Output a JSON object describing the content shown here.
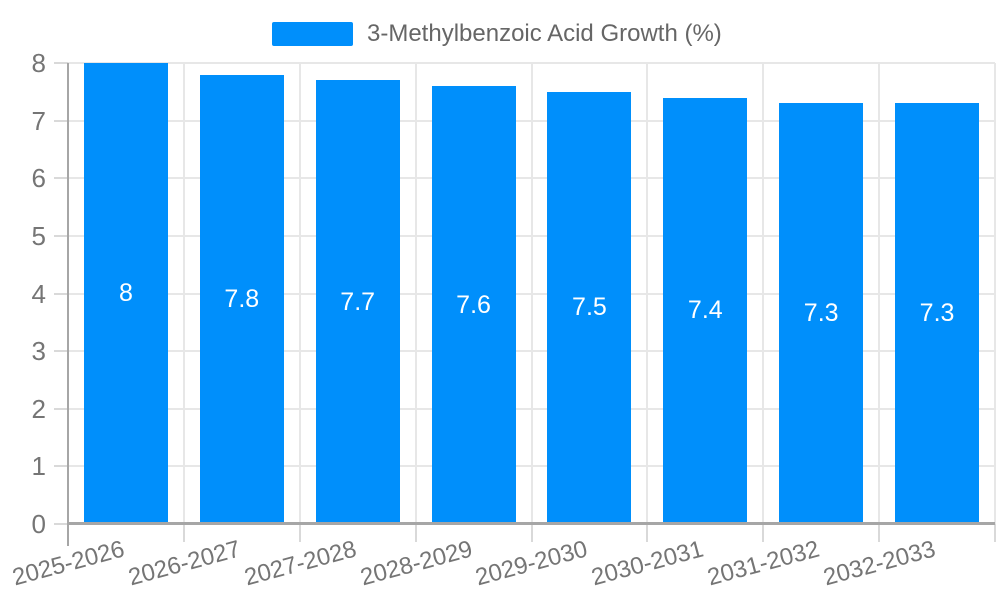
{
  "chart_data": {
    "type": "bar",
    "title": "3-Methylbenzoic Acid Growth (%)",
    "categories": [
      "2025-2026",
      "2026-2027",
      "2027-2028",
      "2028-2029",
      "2029-2030",
      "2030-2031",
      "2031-2032",
      "2032-2033"
    ],
    "values": [
      8,
      7.8,
      7.7,
      7.6,
      7.5,
      7.4,
      7.3,
      7.3
    ],
    "bar_labels": [
      "8",
      "7.8",
      "7.7",
      "7.6",
      "7.5",
      "7.4",
      "7.3",
      "7.3"
    ],
    "xlabel": "",
    "ylabel": "",
    "ylim": [
      0,
      8
    ],
    "yticks": [
      0,
      1,
      2,
      3,
      4,
      5,
      6,
      7,
      8
    ],
    "grid": true,
    "legend_position": "top",
    "x_label_rotation_deg": -15,
    "colors": {
      "bar": "#008FFB",
      "axis": "#a6a6a6",
      "grid": "#e7e7e7",
      "tick": "#d9d9d9",
      "label": "#757575",
      "legend_text": "#666666",
      "value_label": "#ffffff",
      "background": "#ffffff"
    }
  }
}
